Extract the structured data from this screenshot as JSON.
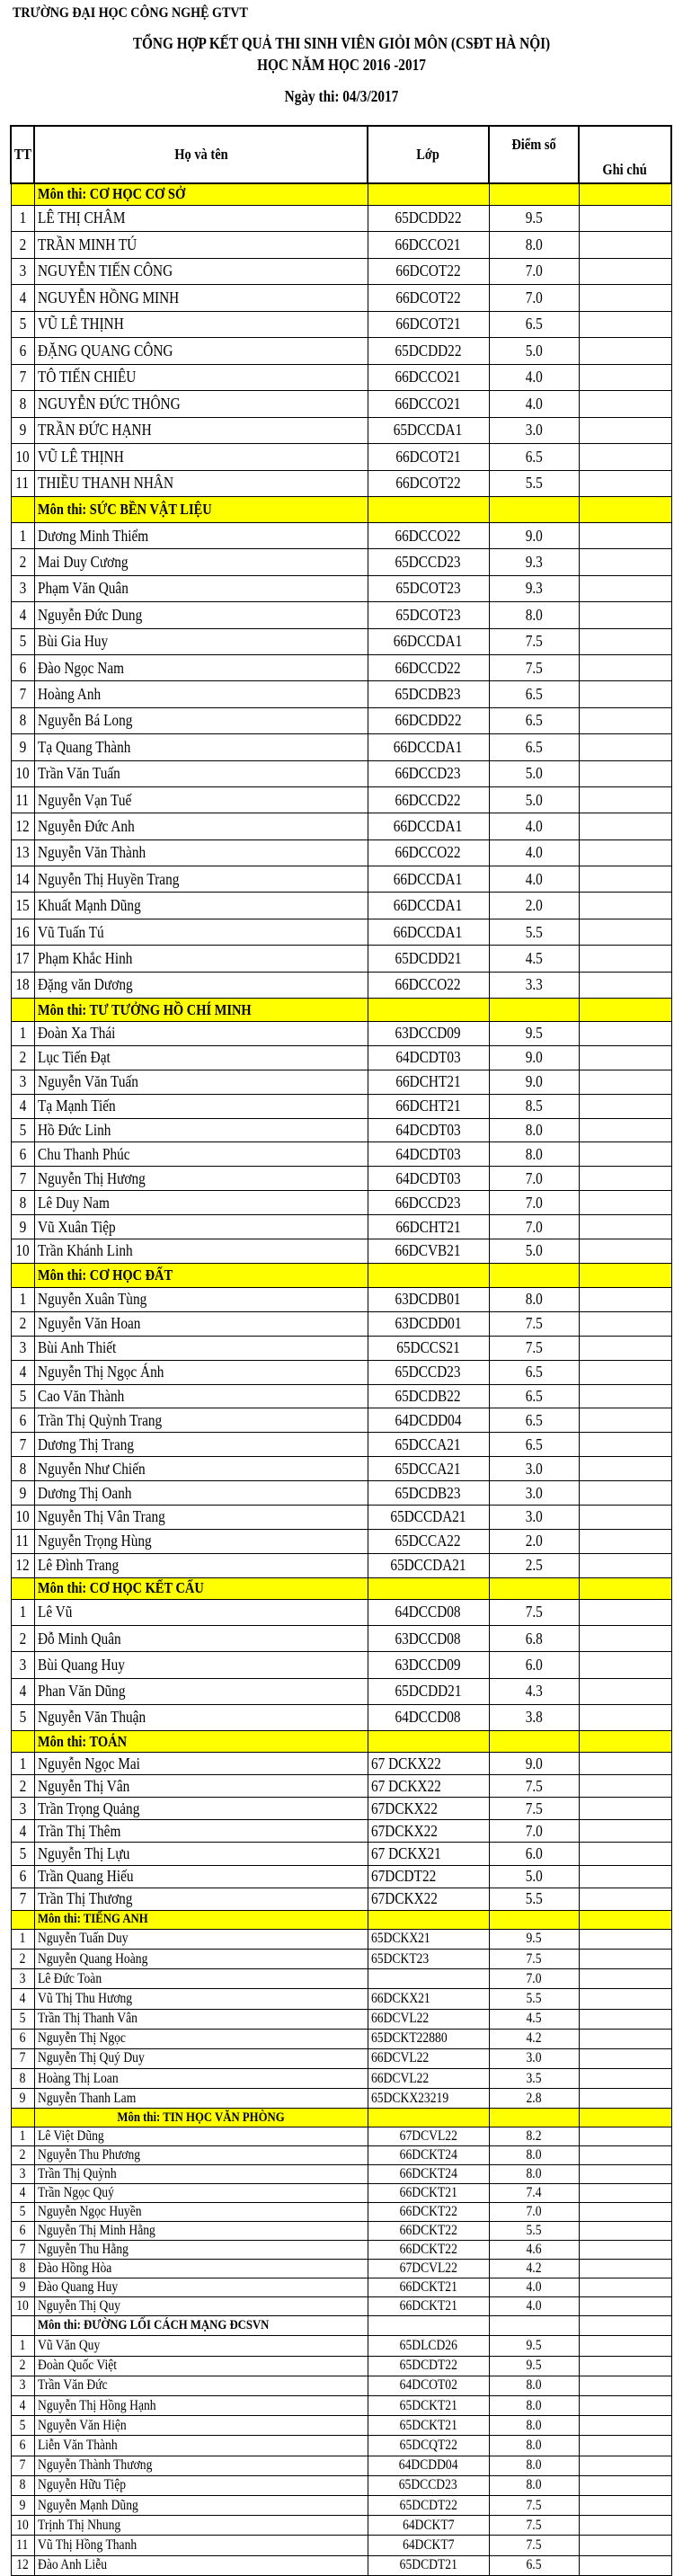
{
  "header": {
    "school": "TRƯỜNG ĐẠI HỌC CÔNG NGHỆ GTVT",
    "title": "TỔNG HỢP KẾT QUẢ THI SINH VIÊN GIỎI MÔN (CSĐT HÀ NỘI)",
    "subtitle": "HỌC NĂM HỌC 2016 -2017",
    "exam_date": "Ngày thi: 04/3/2017"
  },
  "columns": {
    "tt": "TT",
    "name": "Họ và tên",
    "class": "Lớp",
    "score": "Điểm số",
    "note": "Ghi chú"
  },
  "highlight_color": "#FFFF00",
  "sections": [
    {
      "subject": "Môn thi: CƠ HỌC CƠ SỞ",
      "highlighted": true,
      "rows": [
        [
          "1",
          "LÊ THỊ CHÂM",
          "65DCDD22",
          "9.5"
        ],
        [
          "2",
          "TRẦN MINH TÚ",
          "66DCCO21",
          "8.0"
        ],
        [
          "3",
          "NGUYỄN TIẾN CÔNG",
          "66DCOT22",
          "7.0"
        ],
        [
          "4",
          "NGUYỄN HỒNG MINH",
          "66DCOT22",
          "7.0"
        ],
        [
          "5",
          "VŨ LÊ THỊNH",
          "66DCOT21",
          "6.5"
        ],
        [
          "6",
          "ĐẶNG QUANG CÔNG",
          "65DCDD22",
          "5.0"
        ],
        [
          "7",
          "TÔ TIẾN CHIÊU",
          "66DCCO21",
          "4.0"
        ],
        [
          "8",
          "NGUYỄN ĐỨC THÔNG",
          "66DCCO21",
          "4.0"
        ],
        [
          "9",
          "TRẦN ĐỨC HẠNH",
          "65DCCDA1",
          "3.0"
        ],
        [
          "10",
          "VŨ LÊ THỊNH",
          "66DCOT21",
          "6.5"
        ],
        [
          "11",
          "THIỀU THANH NHÂN",
          "66DCOT22",
          "5.5"
        ]
      ]
    },
    {
      "subject": "Môn thi: SỨC BỀN VẬT LIỆU",
      "highlighted": true,
      "rows": [
        [
          "1",
          "Dương Minh Thiểm",
          "66DCCO22",
          "9.0"
        ],
        [
          "2",
          "Mai Duy Cương",
          "65DCCD23",
          "9.3"
        ],
        [
          "3",
          "Phạm Văn Quân",
          "65DCOT23",
          "9.3"
        ],
        [
          "4",
          "Nguyễn Đức Dung",
          "65DCOT23",
          "8.0"
        ],
        [
          "5",
          "Bùi Gia Huy",
          "66DCCDA1",
          "7.5"
        ],
        [
          "6",
          "Đào Ngọc Nam",
          "66DCCD22",
          "7.5"
        ],
        [
          "7",
          "Hoàng Anh",
          "65DCDB23",
          "6.5"
        ],
        [
          "8",
          "Nguyễn Bá Long",
          "66DCDD22",
          "6.5"
        ],
        [
          "9",
          "Tạ Quang Thành",
          "66DCCDA1",
          "6.5"
        ],
        [
          "10",
          "Trần Văn Tuấn",
          "66DCCD23",
          "5.0"
        ],
        [
          "11",
          "Nguyễn Vạn Tuế",
          "66DCCD22",
          "5.0"
        ],
        [
          "12",
          "Nguyễn Đức Anh",
          "66DCCDA1",
          "4.0"
        ],
        [
          "13",
          "Nguyễn Văn Thành",
          "66DCCO22",
          "4.0"
        ],
        [
          "14",
          "Nguyễn Thị Huyền Trang",
          "66DCCDA1",
          "4.0"
        ],
        [
          "15",
          "Khuất Mạnh Dũng",
          "66DCCDA1",
          "2.0"
        ],
        [
          "16",
          "Vũ Tuấn Tú",
          "66DCCDA1",
          "5.5"
        ],
        [
          "17",
          "Phạm Khắc Hinh",
          "65DCDD21",
          "4.5"
        ],
        [
          "18",
          "Đặng văn Dương",
          "66DCCO22",
          "3.3"
        ]
      ]
    },
    {
      "subject": "Môn thi: TƯ TƯỞNG HỒ CHÍ MINH",
      "highlighted": true,
      "rows": [
        [
          "1",
          "Đoàn Xa Thái",
          "63DCCD09",
          "9.5"
        ],
        [
          "2",
          "Lục Tiến Đạt",
          "64DCDT03",
          "9.0"
        ],
        [
          "3",
          "Nguyễn Văn Tuấn",
          "66DCHT21",
          "9.0"
        ],
        [
          "4",
          "Tạ Mạnh Tiến",
          "66DCHT21",
          "8.5"
        ],
        [
          "5",
          "Hồ Đức Linh",
          "64DCDT03",
          "8.0"
        ],
        [
          "6",
          "Chu Thanh Phúc",
          "64DCDT03",
          "8.0"
        ],
        [
          "7",
          "Nguyễn Thị Hương",
          "64DCDT03",
          "7.0"
        ],
        [
          "8",
          "Lê Duy Nam",
          "66DCCD23",
          "7.0"
        ],
        [
          "9",
          "Vũ Xuân Tiệp",
          "66DCHT21",
          "7.0"
        ],
        [
          "10",
          "Trần Khánh Linh",
          "66DCVB21",
          "5.0"
        ]
      ]
    },
    {
      "subject": "Môn thi: CƠ HỌC ĐẤT",
      "highlighted": true,
      "rows": [
        [
          "1",
          "Nguyễn Xuân Tùng",
          "63DCDB01",
          "8.0"
        ],
        [
          "2",
          "Nguyễn Văn Hoan",
          "63DCDD01",
          "7.5"
        ],
        [
          "3",
          "Bùi Anh Thiết",
          "65DCCS21",
          "7.5"
        ],
        [
          "4",
          "Nguyễn Thị Ngọc Ánh",
          "65DCCD23",
          "6.5"
        ],
        [
          "5",
          "Cao Văn Thành",
          "65DCDB22",
          "6.5"
        ],
        [
          "6",
          "Trần Thị Quỳnh Trang",
          "64DCDD04",
          "6.5"
        ],
        [
          "7",
          "Dương Thị Trang",
          "65DCCA21",
          "6.5"
        ],
        [
          "8",
          "Nguyễn Như Chiến",
          "65DCCA21",
          "3.0"
        ],
        [
          "9",
          "Dương Thị Oanh",
          "65DCDB23",
          "3.0"
        ],
        [
          "10",
          "Nguyễn Thị Vân Trang",
          "65DCCDA21",
          "3.0"
        ],
        [
          "11",
          "Nguyễn Trọng Hùng",
          "65DCCA22",
          "2.0"
        ],
        [
          "12",
          "Lê Đình Trang",
          "65DCCDA21",
          "2.5"
        ]
      ]
    },
    {
      "subject": "Môn thi: CƠ HỌC KẾT CẤU",
      "highlighted": true,
      "rows": [
        [
          "1",
          "Lê Vũ",
          "64DCCD08",
          "7.5"
        ],
        [
          "2",
          "Đỗ Minh Quân",
          "63DCCD08",
          "6.8"
        ],
        [
          "3",
          "Bùi Quang Huy",
          "63DCCD09",
          "6.0"
        ],
        [
          "4",
          "Phan Văn Dũng",
          "65DCDD21",
          "4.3"
        ],
        [
          "5",
          "Nguyễn Văn Thuận",
          "64DCCD08",
          "3.8"
        ]
      ]
    },
    {
      "subject": "Môn thi: TOÁN",
      "highlighted": true,
      "rows": [
        [
          "1",
          "Nguyễn Ngọc Mai",
          "67 DCKX22",
          "9.0"
        ],
        [
          "2",
          "Nguyễn Thị Vân",
          "67 DCKX22",
          "7.5"
        ],
        [
          "3",
          "Trần Trọng Quảng",
          "67DCKX22",
          "7.5"
        ],
        [
          "4",
          "Trần Thị Thêm",
          "67DCKX22",
          "7.0"
        ],
        [
          "5",
          "Nguyễn Thị Lựu",
          "67 DCKX21",
          "6.0"
        ],
        [
          "6",
          "Trần Quang Hiếu",
          "67DCDT22",
          "5.0"
        ],
        [
          "7",
          "Trần Thị Thương",
          "67DCKX22",
          "5.5"
        ]
      ]
    },
    {
      "subject": "Môn thi: TIẾNG ANH",
      "highlighted": true,
      "rows": [
        [
          "1",
          "Nguyễn Tuấn Duy",
          "65DCKX21",
          "9.5"
        ],
        [
          "2",
          "Nguyễn Quang Hoàng",
          "65DCKT23",
          "7.5"
        ],
        [
          "3",
          "Lê Đức Toàn",
          "",
          "7.0"
        ],
        [
          "4",
          "Vũ Thị Thu Hương",
          "66DCKX21",
          "5.5"
        ],
        [
          "5",
          "Trần Thị Thanh Vân",
          "66DCVL22",
          "4.5"
        ],
        [
          "6",
          "Nguyễn Thị Ngọc",
          "65DCKT22880",
          "4.2"
        ],
        [
          "7",
          "Nguyễn Thị Quý Duy",
          "66DCVL22",
          "3.0"
        ],
        [
          "8",
          "Hoàng Thị Loan",
          "66DCVL22",
          "3.5"
        ],
        [
          "9",
          "Nguyễn Thanh Lam",
          "65DCKX23219",
          "2.8"
        ]
      ]
    },
    {
      "subject": "Môn thi: TIN HỌC VĂN PHÒNG",
      "highlighted": true,
      "rows": [
        [
          "1",
          "Lê Việt Dũng",
          "67DCVL22",
          "8.2"
        ],
        [
          "2",
          "Nguyễn Thu Phương",
          "66DCKT24",
          "8.0"
        ],
        [
          "3",
          "Trần Thị Quỳnh",
          "66DCKT24",
          "8.0"
        ],
        [
          "4",
          "Trần Ngọc Quý",
          "66DCKT21",
          "7.4"
        ],
        [
          "5",
          "Nguyễn Ngọc Huyền",
          "66DCKT22",
          "7.0"
        ],
        [
          "6",
          "Nguyễn Thị Minh Hằng",
          "66DCKT22",
          "5.5"
        ],
        [
          "7",
          "Nguyễn Thu Hằng",
          "66DCKT22",
          "4.6"
        ],
        [
          "8",
          "Đào Hồng Hòa",
          "67DCVL22",
          "4.2"
        ],
        [
          "9",
          "Đào Quang Huy",
          "66DCKT21",
          "4.0"
        ],
        [
          "10",
          "Nguyễn Thị Quy",
          "66DCKT21",
          "4.0"
        ]
      ]
    },
    {
      "subject": "Môn thi: ĐƯỜNG LỐI CÁCH MẠNG ĐCSVN",
      "highlighted": false,
      "rows": [
        [
          "1",
          "Vũ Văn Quy",
          "65DLCD26",
          "9.5"
        ],
        [
          "2",
          "Đoàn Quốc Việt",
          "65DCDT22",
          "9.5"
        ],
        [
          "3",
          "Trần Văn Đức",
          "64DCOT02",
          "8.0"
        ],
        [
          "4",
          "Nguyễn Thị Hồng Hạnh",
          "65DCKT21",
          "8.0"
        ],
        [
          "5",
          "Nguyễn Văn Hiện",
          "65DCKT21",
          "8.0"
        ],
        [
          "6",
          "Liễn Văn Thành",
          "65DCQT22",
          "8.0"
        ],
        [
          "7",
          "Nguyễn Thành Thương",
          "64DCDD04",
          "8.0"
        ],
        [
          "8",
          "Nguyễn Hữu Tiệp",
          "65DCCD23",
          "8.0"
        ],
        [
          "9",
          "Nguyễn Mạnh Dũng",
          "65DCDT22",
          "7.5"
        ],
        [
          "10",
          "Trịnh Thị Nhung",
          "64DCKT7",
          "7.5"
        ],
        [
          "11",
          "Vũ Thị Hồng Thanh",
          "64DCKT7",
          "7.5"
        ],
        [
          "12",
          "Đào Anh Liễu",
          "65DCDT21",
          "6.5"
        ]
      ]
    }
  ]
}
